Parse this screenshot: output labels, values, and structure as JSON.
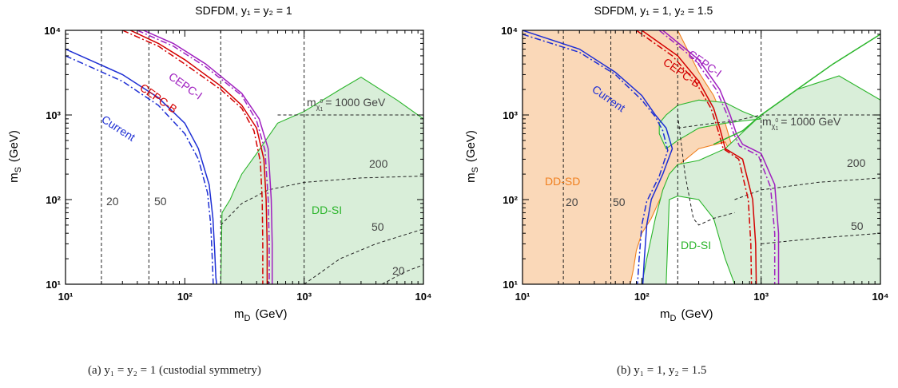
{
  "chart_data": [
    {
      "panel": "a",
      "type": "line",
      "title": "SDFDM,  y₁ = y₂ = 1",
      "xlabel": "m₀ (GeV)",
      "xlabel_text": "(GeV)",
      "ylabel_text": "(GeV)",
      "x_scale": "log",
      "y_scale": "log",
      "xlim": [
        10,
        10000
      ],
      "ylim": [
        10,
        10000
      ],
      "xticks": [
        "10¹",
        "10²",
        "10³",
        "10⁴"
      ],
      "yticks": [
        "10¹",
        "10²",
        "10³",
        "10⁴"
      ],
      "caption": "(a)  y₁ = y₂ = 1 (custodial symmetry)",
      "regions": [
        {
          "name": "DD-SI",
          "color": "#2bb52b",
          "fill": "#d9eed9",
          "x": [
            175,
            200,
            205,
            240,
            260,
            300,
            400,
            600,
            1000,
            2000,
            3000,
            6000,
            10000,
            10000
          ],
          "y": [
            10,
            10,
            70,
            100,
            130,
            200,
            350,
            800,
            1100,
            2000,
            2800,
            1500,
            900,
            10
          ]
        }
      ],
      "curves": [
        {
          "name": "Current",
          "color": "#1e2fd4",
          "dash": "solid",
          "x": [
            10,
            30,
            60,
            100,
            130,
            160,
            172,
            178,
            182,
            185
          ],
          "y": [
            6000,
            3000,
            1600,
            800,
            400,
            150,
            60,
            25,
            12,
            10
          ]
        },
        {
          "name": "",
          "color": "#1e2fd4",
          "dash": "dashdot",
          "x": [
            10,
            30,
            60,
            100,
            130,
            155,
            165,
            170,
            173
          ],
          "y": [
            5000,
            2500,
            1300,
            600,
            300,
            120,
            50,
            20,
            10
          ]
        },
        {
          "name": "CEPC-B",
          "color": "#d40000",
          "dash": "solid",
          "x": [
            35,
            60,
            100,
            200,
            300,
            400,
            460,
            480,
            490,
            490
          ],
          "y": [
            10000,
            7000,
            4500,
            2200,
            1300,
            700,
            300,
            100,
            30,
            10
          ]
        },
        {
          "name": "",
          "color": "#d40000",
          "dash": "dashdot",
          "x": [
            30,
            60,
            100,
            200,
            300,
            380,
            430,
            445,
            450,
            450
          ],
          "y": [
            10000,
            6500,
            4000,
            2000,
            1200,
            650,
            280,
            100,
            30,
            10
          ]
        },
        {
          "name": "CEPC-I",
          "color": "#a020c0",
          "dash": "solid",
          "x": [
            45,
            80,
            150,
            300,
            420,
            500,
            530,
            540,
            540
          ],
          "y": [
            10000,
            7000,
            4000,
            1800,
            900,
            400,
            100,
            30,
            10
          ]
        },
        {
          "name": "",
          "color": "#a020c0",
          "dash": "dashdot",
          "x": [
            40,
            80,
            150,
            300,
            400,
            470,
            500,
            510,
            510
          ],
          "y": [
            10000,
            6500,
            3700,
            1700,
            850,
            380,
            100,
            30,
            10
          ]
        }
      ],
      "contours_mchi": [
        {
          "label": "mχ = 1000 GeV",
          "x": [
            600,
            1000,
            3000,
            10000
          ],
          "y": [
            1000,
            1000,
            1000,
            1000
          ]
        },
        {
          "label": "200",
          "x": [
            200,
            300,
            500,
            1000,
            3000,
            10000
          ],
          "y": [
            50,
            90,
            130,
            160,
            180,
            190
          ]
        },
        {
          "label": "50",
          "x": [
            1000,
            2000,
            4000,
            10000
          ],
          "y": [
            10,
            20,
            30,
            45
          ]
        },
        {
          "label": "20",
          "x": [
            4500,
            7000,
            10000
          ],
          "y": [
            10,
            14,
            17
          ]
        }
      ],
      "contours_vertical": [
        {
          "label": "20",
          "x": 20
        },
        {
          "label": "50",
          "x": 50
        },
        {
          "label": "",
          "x": 200
        },
        {
          "label": "",
          "x": 1000
        }
      ],
      "labels": {
        "cepc_i": "CEPC-I",
        "cepc_b": "CEPC-B",
        "current": "Current",
        "dd_si": "DD-SI",
        "m1000": "= 1000 GeV",
        "c200": "200",
        "c50": "50",
        "c20": "20",
        "v20": "20",
        "v50": "50"
      }
    },
    {
      "panel": "b",
      "type": "line",
      "title": "SDFDM,  y₁ = 1,  y₂ = 1.5",
      "xlabel_text": "(GeV)",
      "ylabel_text": "(GeV)",
      "x_scale": "log",
      "y_scale": "log",
      "xlim": [
        10,
        10000
      ],
      "ylim": [
        10,
        10000
      ],
      "xticks": [
        "10¹",
        "10²",
        "10³",
        "10⁴"
      ],
      "yticks": [
        "10¹",
        "10²",
        "10³",
        "10⁴"
      ],
      "caption": "(b)  y₁ = 1, y₂ = 1.5",
      "regions": [
        {
          "name": "DD-SD",
          "color": "#f08020",
          "fill": "#fad8b8",
          "x": [
            10,
            10,
            20,
            50,
            100,
            150,
            200,
            300,
            400,
            500,
            600,
            700,
            800,
            1000,
            700,
            620,
            570,
            500,
            300,
            200,
            150,
            120,
            100,
            90,
            85,
            80
          ],
          "y": [
            10,
            10000,
            10000,
            10000,
            10000,
            10000,
            10000,
            3200,
            1700,
            800,
            330,
            100,
            40,
            10,
            10,
            100,
            330,
            480,
            400,
            250,
            120,
            60,
            40,
            25,
            15,
            10
          ]
        },
        {
          "name": "DD-SI",
          "color": "#2bb52b",
          "fill": "#d9eed9",
          "x": [
            100,
            110,
            130,
            150,
            170,
            200,
            300,
            500,
            1000,
            2000,
            4500,
            10000,
            10000,
            1000,
            700,
            600,
            500,
            400,
            300,
            200,
            170,
            160
          ],
          "y": [
            10,
            20,
            60,
            130,
            200,
            260,
            290,
            400,
            1000,
            2000,
            2900,
            1500,
            10,
            10,
            10,
            10,
            20,
            60,
            100,
            110,
            100,
            10
          ]
        },
        {
          "name": "",
          "color": "#2bb52b",
          "fill": "#d9eed9",
          "x": [
            140,
            160,
            200,
            300,
            500,
            700,
            1000,
            700,
            500,
            300,
            200,
            160,
            140
          ],
          "y": [
            800,
            1000,
            1300,
            1500,
            1400,
            1100,
            900,
            850,
            800,
            700,
            500,
            400,
            600
          ]
        }
      ],
      "curves": [
        {
          "name": "Current",
          "color": "#1e2fd4",
          "dash": "solid",
          "x": [
            10,
            30,
            60,
            100,
            130,
            160,
            180,
            150,
            120,
            110,
            105,
            102
          ],
          "y": [
            10000,
            6000,
            3200,
            1700,
            1000,
            700,
            400,
            200,
            100,
            50,
            20,
            10
          ]
        },
        {
          "name": "",
          "color": "#1e2fd4",
          "dash": "dashdot",
          "x": [
            10,
            30,
            60,
            100,
            130,
            150,
            165,
            140,
            110,
            100,
            95,
            92
          ],
          "y": [
            9000,
            5500,
            3000,
            1500,
            950,
            650,
            380,
            190,
            95,
            50,
            20,
            10
          ]
        },
        {
          "name": "CEPC-B",
          "color": "#d40000",
          "dash": "solid",
          "x": [
            100,
            200,
            300,
            400,
            450,
            480,
            500,
            700,
            850,
            900,
            910
          ],
          "y": [
            10000,
            5000,
            2500,
            1200,
            700,
            500,
            400,
            300,
            100,
            30,
            10
          ]
        },
        {
          "name": "",
          "color": "#d40000",
          "dash": "dashdot",
          "x": [
            90,
            180,
            280,
            380,
            430,
            460,
            480,
            650,
            780,
            820,
            830
          ],
          "y": [
            10000,
            5000,
            2500,
            1200,
            700,
            500,
            400,
            300,
            100,
            30,
            10
          ]
        },
        {
          "name": "CEPC-I",
          "color": "#a020c0",
          "dash": "solid",
          "x": [
            150,
            300,
            450,
            550,
            620,
            700,
            1000,
            1300,
            1400,
            1400
          ],
          "y": [
            10000,
            4500,
            2000,
            1000,
            600,
            450,
            350,
            150,
            40,
            10
          ]
        },
        {
          "name": "",
          "color": "#a020c0",
          "dash": "dashdot",
          "x": [
            140,
            280,
            420,
            520,
            590,
            660,
            950,
            1200,
            1300,
            1300
          ],
          "y": [
            10000,
            4500,
            2000,
            1000,
            600,
            430,
            330,
            140,
            40,
            10
          ]
        },
        {
          "name": "",
          "color": "#2bb52b",
          "dash": "solid",
          "x": [
            400,
            700,
            1000,
            2000,
            4000,
            10000
          ],
          "y": [
            450,
            650,
            1000,
            2000,
            4000,
            9000
          ]
        }
      ],
      "contours_mchi": [
        {
          "label": "mχ = 1000 GeV",
          "x": [
            200,
            400,
            600,
            1000,
            3000,
            10000
          ],
          "y": [
            700,
            800,
            850,
            1000,
            1000,
            1000
          ]
        },
        {
          "label": "200",
          "x": [
            600,
            1000,
            3000,
            10000
          ],
          "y": [
            100,
            130,
            160,
            180
          ]
        },
        {
          "label": "50",
          "x": [
            1000,
            3000,
            10000
          ],
          "y": [
            30,
            35,
            40
          ]
        },
        {
          "label": "",
          "x": [
            200,
            230,
            270,
            300,
            400,
            600
          ],
          "y": [
            1000,
            200,
            60,
            50,
            60,
            70
          ]
        }
      ],
      "contours_vertical": [
        {
          "label": "20",
          "x": 22
        },
        {
          "label": "50",
          "x": 55
        },
        {
          "label": "",
          "x": 200
        },
        {
          "label": "",
          "x": 1000
        }
      ],
      "labels": {
        "cepc_i": "CEPC-I",
        "cepc_b": "CEPC-B",
        "current": "Current",
        "dd_si": "DD-SI",
        "dd_sd": "DD-SD",
        "m1000": "= 1000 GeV",
        "c200": "200",
        "c50": "50",
        "v20": "20",
        "v50": "50"
      }
    }
  ]
}
